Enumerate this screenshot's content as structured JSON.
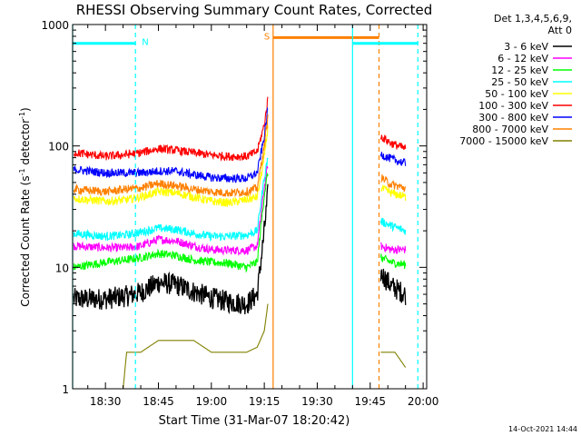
{
  "chart_data": {
    "type": "line",
    "title": "RHESSI Observing Summary Count Rates, Corrected",
    "xlabel": "Start Time (31-Mar-07 18:20:42)",
    "ylabel": "Corrected Count Rate (s⁻¹ detector⁻¹)",
    "ylabel_parts": {
      "main": "Corrected Count Rate (s",
      "exp1": "-1",
      "mid": " detector",
      "exp2": "-1",
      "end": ")"
    },
    "y_scale": "log",
    "ylim": [
      1,
      1000
    ],
    "xlim": [
      "18:20:42",
      "20:01:00"
    ],
    "x_ticks": [
      "18:30",
      "18:45",
      "19:00",
      "19:15",
      "19:30",
      "19:45",
      "20:00"
    ],
    "y_ticks": [
      "1",
      "10",
      "100",
      "1000"
    ],
    "grid": false,
    "legend": {
      "placement": "right",
      "header": [
        "Det 1,3,4,5,6,9,",
        "Att 0"
      ]
    },
    "series": [
      {
        "name": "3 - 6 keV",
        "color": "#000000",
        "points": [
          [
            "18:21",
            5.5
          ],
          [
            "18:30",
            5.5
          ],
          [
            "18:36",
            5.8
          ],
          [
            "18:40",
            6.2
          ],
          [
            "18:45",
            7.5
          ],
          [
            "18:50",
            7.2
          ],
          [
            "18:55",
            6.3
          ],
          [
            "19:00",
            5.6
          ],
          [
            "19:05",
            5.2
          ],
          [
            "19:10",
            5.0
          ],
          [
            "19:13",
            6.0
          ],
          [
            "19:15",
            20
          ],
          [
            "19:16",
            40
          ],
          [
            "19:48",
            9
          ],
          [
            "19:51",
            7
          ],
          [
            "19:55",
            6
          ]
        ]
      },
      {
        "name": "6 - 12 keV",
        "color": "#ff00ff",
        "points": [
          [
            "18:21",
            15
          ],
          [
            "18:30",
            14.5
          ],
          [
            "18:36",
            14.5
          ],
          [
            "18:40",
            15
          ],
          [
            "18:45",
            17
          ],
          [
            "18:50",
            16.5
          ],
          [
            "18:55",
            15
          ],
          [
            "19:00",
            14
          ],
          [
            "19:05",
            13.8
          ],
          [
            "19:10",
            13.8
          ],
          [
            "19:13",
            15
          ],
          [
            "19:15",
            45
          ],
          [
            "19:16",
            70
          ],
          [
            "19:48",
            15
          ],
          [
            "19:51",
            14
          ],
          [
            "19:55",
            14
          ]
        ]
      },
      {
        "name": "12 - 25 keV",
        "color": "#00ff00",
        "points": [
          [
            "18:21",
            10
          ],
          [
            "18:30",
            11
          ],
          [
            "18:36",
            11.5
          ],
          [
            "18:40",
            12
          ],
          [
            "18:45",
            13
          ],
          [
            "18:50",
            12.5
          ],
          [
            "18:55",
            11.5
          ],
          [
            "19:00",
            11
          ],
          [
            "19:05",
            10.8
          ],
          [
            "19:10",
            10
          ],
          [
            "19:13",
            11
          ],
          [
            "19:15",
            40
          ],
          [
            "19:16",
            60
          ],
          [
            "19:48",
            12
          ],
          [
            "19:51",
            11
          ],
          [
            "19:55",
            10.5
          ]
        ]
      },
      {
        "name": "25 - 50 keV",
        "color": "#00ffff",
        "points": [
          [
            "18:21",
            19
          ],
          [
            "18:30",
            18
          ],
          [
            "18:36",
            18.5
          ],
          [
            "18:40",
            19.5
          ],
          [
            "18:45",
            21
          ],
          [
            "18:50",
            20.5
          ],
          [
            "18:55",
            19
          ],
          [
            "19:00",
            18
          ],
          [
            "19:05",
            18
          ],
          [
            "19:10",
            18.5
          ],
          [
            "19:13",
            20
          ],
          [
            "19:15",
            55
          ],
          [
            "19:16",
            80
          ],
          [
            "19:48",
            24
          ],
          [
            "19:51",
            22
          ],
          [
            "19:55",
            20
          ]
        ]
      },
      {
        "name": "50 - 100 keV",
        "color": "#ffff00",
        "points": [
          [
            "18:21",
            37
          ],
          [
            "18:30",
            35
          ],
          [
            "18:36",
            36
          ],
          [
            "18:40",
            38
          ],
          [
            "18:45",
            42
          ],
          [
            "18:50",
            41
          ],
          [
            "18:55",
            38
          ],
          [
            "19:00",
            35
          ],
          [
            "19:05",
            34
          ],
          [
            "19:10",
            36
          ],
          [
            "19:13",
            38
          ],
          [
            "19:15",
            80
          ],
          [
            "19:16",
            140
          ],
          [
            "19:48",
            45
          ],
          [
            "19:51",
            41
          ],
          [
            "19:55",
            38
          ]
        ]
      },
      {
        "name": "100 - 300 keV",
        "color": "#ff0000",
        "points": [
          [
            "18:21",
            88
          ],
          [
            "18:30",
            82
          ],
          [
            "18:36",
            85
          ],
          [
            "18:40",
            88
          ],
          [
            "18:45",
            95
          ],
          [
            "18:50",
            92
          ],
          [
            "18:55",
            88
          ],
          [
            "19:00",
            84
          ],
          [
            "19:05",
            82
          ],
          [
            "19:10",
            82
          ],
          [
            "19:13",
            90
          ],
          [
            "19:15",
            150
          ],
          [
            "19:16",
            240
          ],
          [
            "19:48",
            120
          ],
          [
            "19:51",
            105
          ],
          [
            "19:55",
            95
          ]
        ]
      },
      {
        "name": "300 - 800 keV",
        "color": "#0000ff",
        "points": [
          [
            "18:21",
            64
          ],
          [
            "18:30",
            60
          ],
          [
            "18:36",
            60
          ],
          [
            "18:40",
            60
          ],
          [
            "18:45",
            62
          ],
          [
            "18:50",
            62
          ],
          [
            "18:55",
            58
          ],
          [
            "19:00",
            55
          ],
          [
            "19:05",
            54
          ],
          [
            "19:10",
            54
          ],
          [
            "19:13",
            60
          ],
          [
            "19:15",
            120
          ],
          [
            "19:16",
            200
          ],
          [
            "19:48",
            85
          ],
          [
            "19:51",
            78
          ],
          [
            "19:55",
            72
          ]
        ]
      },
      {
        "name": "800 - 7000 keV",
        "color": "#ff8000",
        "points": [
          [
            "18:21",
            44
          ],
          [
            "18:30",
            42
          ],
          [
            "18:36",
            44
          ],
          [
            "18:40",
            45
          ],
          [
            "18:45",
            49
          ],
          [
            "18:50",
            47
          ],
          [
            "18:55",
            44
          ],
          [
            "19:00",
            42
          ],
          [
            "19:05",
            41
          ],
          [
            "19:10",
            42
          ],
          [
            "19:13",
            45
          ],
          [
            "19:15",
            100
          ],
          [
            "19:16",
            170
          ],
          [
            "19:48",
            55
          ],
          [
            "19:51",
            48
          ],
          [
            "19:55",
            45
          ]
        ]
      },
      {
        "name": "7000 - 15000 keV",
        "color": "#808000",
        "points": [
          [
            "18:21",
            1
          ],
          [
            "18:35",
            1
          ],
          [
            "18:36",
            2
          ],
          [
            "18:40",
            2
          ],
          [
            "18:45",
            2.5
          ],
          [
            "18:55",
            2.5
          ],
          [
            "19:00",
            2
          ],
          [
            "19:10",
            2
          ],
          [
            "19:13",
            2.2
          ],
          [
            "19:15",
            3
          ],
          [
            "19:16",
            5
          ],
          [
            "19:48",
            2
          ],
          [
            "19:52",
            2
          ],
          [
            "19:55",
            1.5
          ]
        ]
      }
    ],
    "annotations": [
      {
        "label": "N",
        "color": "#00ffff",
        "x_start": "18:20:42",
        "x_end": "18:38:30",
        "level": 700
      },
      {
        "label": "S",
        "color": "#ff8000",
        "x_start": "19:17:30",
        "x_end": "19:47:30",
        "level": 780
      },
      {
        "label": "",
        "color": "#00ffff",
        "x_start": "19:40:00",
        "x_end": "19:58:30",
        "level": 700
      }
    ],
    "footer_date": "14-Oct-2021 14:44"
  }
}
